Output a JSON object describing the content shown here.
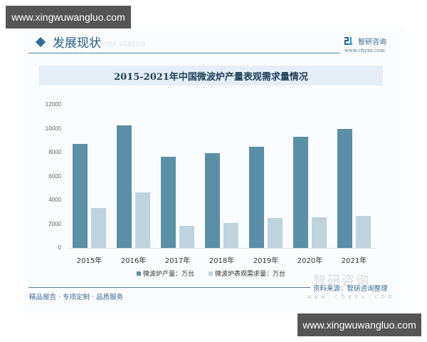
{
  "watermarks": {
    "top": "www.xingwuwangluo.com",
    "bottom": "www.xingwuwangluo.com"
  },
  "header": {
    "section_title": "发展现状",
    "section_subtitle": "ent status",
    "brand_name": "智研咨询",
    "brand_url": "www.chyxx.com"
  },
  "footer": {
    "slogan": "精品报告 · 专项定制 · 品质服务",
    "source": "资料来源：智研咨询整理",
    "source_url": "www.chyxx.com",
    "faint_brand": "智研咨询"
  },
  "colors": {
    "production": "#5b8fa5",
    "demand": "#bfd3de",
    "accent": "#2f6c97",
    "title_band": "#e5eef6"
  },
  "chart_data": {
    "type": "bar",
    "title": "2015-2021年中国微波炉产量表观需求量情况",
    "xlabel": "",
    "ylabel": "",
    "categories": [
      "2015年",
      "2016年",
      "2017年",
      "2018年",
      "2019年",
      "2020年",
      "2021年"
    ],
    "series": [
      {
        "name": "微波炉产量：万台",
        "color": "#5b8fa5",
        "values": [
          8700,
          10290,
          7640,
          7940,
          8480,
          9290,
          9970
        ]
      },
      {
        "name": "微波炉表观需求量：万台",
        "color": "#bfd3de",
        "values": [
          3360,
          4660,
          1830,
          2110,
          2510,
          2550,
          2700
        ]
      }
    ],
    "yticks": [
      "0",
      "2000",
      "4000",
      "6000",
      "8000",
      "10000",
      "12000"
    ],
    "ylim": [
      0,
      12000
    ],
    "grid": false,
    "legend_position": "bottom"
  }
}
